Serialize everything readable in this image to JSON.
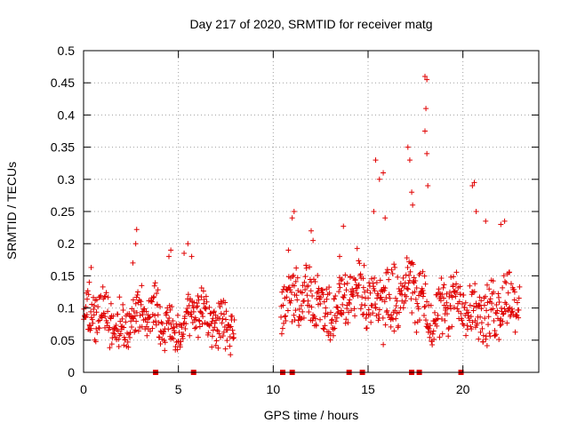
{
  "chart_data": {
    "type": "scatter",
    "title": "Day 217 of 2020, SRMTID for receiver matg",
    "xlabel": "GPS time / hours",
    "ylabel": "SRMTID / TECUs",
    "xlim": [
      0,
      24
    ],
    "ylim": [
      0,
      0.5
    ],
    "xticks": [
      0,
      5,
      10,
      15,
      20
    ],
    "yticks": [
      0,
      0.05,
      0.1,
      0.15,
      0.2,
      0.25,
      0.3,
      0.35,
      0.4,
      0.45,
      0.5
    ],
    "grid": true,
    "marker": "plus",
    "color": "#e00000",
    "series": [
      {
        "name": "SRMTID",
        "segments": [
          {
            "t0": 0.0,
            "t1": 7.95,
            "base": 0.082,
            "spread": 0.035
          },
          {
            "t0": 10.4,
            "t1": 14.4,
            "base": 0.11,
            "spread": 0.045
          },
          {
            "t0": 14.4,
            "t1": 17.9,
            "base": 0.12,
            "spread": 0.05
          },
          {
            "t0": 17.9,
            "t1": 23.0,
            "base": 0.1,
            "spread": 0.045
          }
        ],
        "peaks": [
          {
            "x": 0.3,
            "y": 0.14
          },
          {
            "x": 0.4,
            "y": 0.163
          },
          {
            "x": 2.6,
            "y": 0.17
          },
          {
            "x": 2.75,
            "y": 0.2
          },
          {
            "x": 2.8,
            "y": 0.222
          },
          {
            "x": 4.5,
            "y": 0.18
          },
          {
            "x": 4.6,
            "y": 0.19
          },
          {
            "x": 5.3,
            "y": 0.185
          },
          {
            "x": 5.5,
            "y": 0.2
          },
          {
            "x": 5.7,
            "y": 0.18
          },
          {
            "x": 10.8,
            "y": 0.19
          },
          {
            "x": 11.0,
            "y": 0.24
          },
          {
            "x": 11.1,
            "y": 0.25
          },
          {
            "x": 12.0,
            "y": 0.22
          },
          {
            "x": 12.1,
            "y": 0.205
          },
          {
            "x": 13.5,
            "y": 0.18
          },
          {
            "x": 13.7,
            "y": 0.227
          },
          {
            "x": 15.3,
            "y": 0.25
          },
          {
            "x": 15.4,
            "y": 0.33
          },
          {
            "x": 15.6,
            "y": 0.3
          },
          {
            "x": 15.8,
            "y": 0.31
          },
          {
            "x": 15.9,
            "y": 0.24
          },
          {
            "x": 17.1,
            "y": 0.35
          },
          {
            "x": 17.2,
            "y": 0.33
          },
          {
            "x": 17.3,
            "y": 0.28
          },
          {
            "x": 17.35,
            "y": 0.26
          },
          {
            "x": 18.0,
            "y": 0.46
          },
          {
            "x": 18.1,
            "y": 0.455
          },
          {
            "x": 18.05,
            "y": 0.41
          },
          {
            "x": 18.0,
            "y": 0.375
          },
          {
            "x": 18.1,
            "y": 0.34
          },
          {
            "x": 18.15,
            "y": 0.29
          },
          {
            "x": 20.5,
            "y": 0.29
          },
          {
            "x": 20.6,
            "y": 0.295
          },
          {
            "x": 20.7,
            "y": 0.25
          },
          {
            "x": 21.2,
            "y": 0.235
          },
          {
            "x": 22.0,
            "y": 0.23
          },
          {
            "x": 22.2,
            "y": 0.235
          }
        ]
      }
    ],
    "flags_at_zero": [
      3.8,
      5.8,
      10.5,
      11.0,
      14.0,
      14.7,
      17.3,
      17.7,
      19.9
    ]
  }
}
